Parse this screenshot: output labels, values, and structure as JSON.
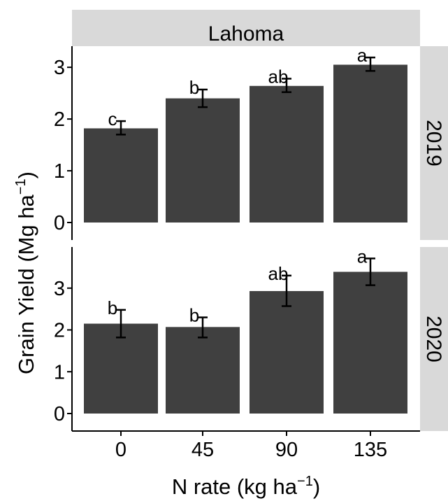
{
  "chart_data": {
    "type": "bar",
    "facet_title": "Lahoma",
    "categories": [
      "0",
      "45",
      "90",
      "135"
    ],
    "xlabel": "N rate (kg ha",
    "xlabel_sup": "−1",
    "xlabel_end": ")",
    "ylabel": "Grain Yield  (Mg ha",
    "ylabel_sup": "−1",
    "ylabel_end": ")",
    "bar_color": "#404040",
    "strip_color": "#d9d9d9",
    "panels": [
      {
        "label": "2019",
        "ylim": [
          0,
          3.3
        ],
        "yticks": [
          "0",
          "1",
          "2",
          "3"
        ],
        "values": [
          1.82,
          2.4,
          2.64,
          3.05
        ],
        "error_low": [
          1.7,
          2.23,
          2.52,
          2.93
        ],
        "error_high": [
          1.96,
          2.57,
          2.78,
          3.19
        ],
        "letters": [
          "c",
          "b",
          "ab",
          "a"
        ]
      },
      {
        "label": "2020",
        "ylim": [
          0,
          3.85
        ],
        "yticks": [
          "0",
          "1",
          "2",
          "3"
        ],
        "values": [
          2.15,
          2.07,
          2.93,
          3.39
        ],
        "error_low": [
          1.82,
          1.82,
          2.57,
          3.07
        ],
        "error_high": [
          2.48,
          2.3,
          3.3,
          3.71
        ],
        "letters": [
          "b",
          "b",
          "ab",
          "a"
        ]
      }
    ]
  }
}
